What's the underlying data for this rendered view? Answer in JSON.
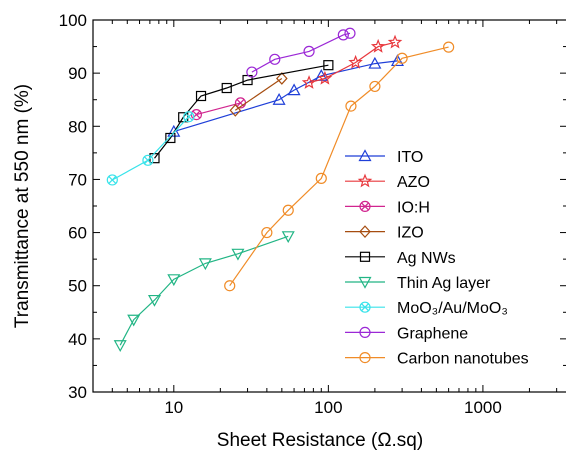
{
  "chart_data": {
    "type": "scatter",
    "xlabel": "Sheet Resistance (Ω.sq)",
    "ylabel": "Transmittance at 550 nm (%)",
    "xscale": "log",
    "xlim": [
      3,
      3500
    ],
    "ylim": [
      30,
      100
    ],
    "x_ticks": [
      10,
      100,
      1000
    ],
    "x_tick_labels": [
      "10",
      "100",
      "1000"
    ],
    "y_ticks": [
      30,
      40,
      50,
      60,
      70,
      80,
      90,
      100
    ],
    "y_tick_labels": [
      "30",
      "40",
      "50",
      "60",
      "70",
      "80",
      "90",
      "100"
    ],
    "legend_position": "right",
    "series": [
      {
        "name": "ITO",
        "marker": "triangle-up",
        "color": "#1f3fd8",
        "x": [
          10,
          48,
          60,
          90,
          200,
          280
        ],
        "y": [
          79,
          85,
          86.8,
          89.5,
          91.8,
          92.3
        ]
      },
      {
        "name": "AZO",
        "marker": "star",
        "color": "#e8383d",
        "x": [
          75,
          95,
          150,
          210,
          270
        ],
        "y": [
          88.2,
          89,
          92,
          95,
          95.8
        ]
      },
      {
        "name": "IO:H",
        "marker": "x-circle",
        "color": "#d1258f",
        "x": [
          14,
          27
        ],
        "y": [
          82.2,
          84.4
        ]
      },
      {
        "name": "IZO",
        "marker": "diamond",
        "color": "#a64d10",
        "x": [
          25,
          50
        ],
        "y": [
          83,
          89
        ]
      },
      {
        "name": "Ag NWs",
        "marker": "square",
        "color": "#000000",
        "x": [
          7.5,
          9.5,
          11.5,
          15,
          22,
          30,
          100
        ],
        "y": [
          74,
          77.8,
          81.7,
          85.7,
          87.2,
          88.7,
          91.5
        ]
      },
      {
        "name": "Thin Ag layer",
        "marker": "triangle-down",
        "color": "#22b585",
        "x": [
          4.5,
          5.5,
          7.5,
          10,
          16,
          26,
          55
        ],
        "y": [
          38.8,
          43.6,
          47.3,
          51.2,
          54.2,
          56,
          59.3
        ]
      },
      {
        "name": "MoO₃/Au/MoO₃",
        "marker": "x-circle",
        "color": "#38e3ea",
        "x": [
          4,
          6.8,
          12.5
        ],
        "y": [
          69.9,
          73.6,
          81.8
        ]
      },
      {
        "name": "Graphene",
        "marker": "circle",
        "color": "#9b28d6",
        "x": [
          32,
          45,
          75,
          125,
          138
        ],
        "y": [
          90.2,
          92.6,
          94.1,
          97.2,
          97.5
        ]
      },
      {
        "name": "Carbon nanotubes",
        "marker": "circle",
        "color": "#f08c28",
        "x": [
          23,
          40,
          55,
          90,
          140,
          200,
          300,
          600
        ],
        "y": [
          50,
          60,
          64.2,
          70.2,
          83.8,
          87.5,
          92.8,
          94.9
        ]
      }
    ]
  }
}
